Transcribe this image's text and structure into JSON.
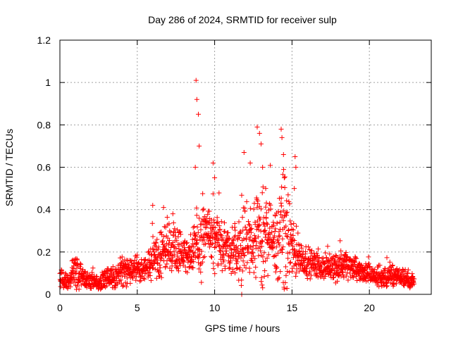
{
  "chart_data": {
    "type": "scatter",
    "title": "Day 286 of 2024, SRMTID for receiver sulp",
    "xlabel": "GPS time / hours",
    "ylabel": "SRMTID / TECUs",
    "xlim": [
      0,
      24
    ],
    "ylim": [
      0,
      1.2
    ],
    "xticks": [
      0,
      5,
      10,
      15,
      20
    ],
    "xtick_labels": [
      "0",
      "5",
      "10",
      "15",
      "20"
    ],
    "yticks": [
      0,
      0.2,
      0.4,
      0.6,
      0.8,
      1,
      1.2
    ],
    "ytick_labels": [
      "0",
      "0.2",
      "0.4",
      "0.6",
      "0.8",
      "1",
      "1.2"
    ],
    "grid": true,
    "marker": "+",
    "color": "#ff0000",
    "envelope": {
      "hours": [
        0,
        0.5,
        1,
        1.5,
        2,
        2.5,
        3,
        3.5,
        4,
        4.5,
        5,
        5.5,
        6,
        6.5,
        7,
        7.5,
        8,
        8.5,
        9,
        9.5,
        10,
        10.5,
        11,
        11.5,
        12,
        12.5,
        13,
        13.5,
        14,
        14.5,
        15,
        15.5,
        16,
        16.5,
        17,
        17.5,
        18,
        18.5,
        19,
        19.5,
        20,
        20.5,
        21,
        21.5,
        22,
        22.5,
        22.9
      ],
      "median": [
        0.07,
        0.06,
        0.11,
        0.07,
        0.06,
        0.05,
        0.08,
        0.08,
        0.1,
        0.11,
        0.12,
        0.13,
        0.15,
        0.18,
        0.25,
        0.22,
        0.2,
        0.18,
        0.22,
        0.32,
        0.22,
        0.24,
        0.22,
        0.2,
        0.24,
        0.27,
        0.28,
        0.26,
        0.24,
        0.3,
        0.22,
        0.18,
        0.15,
        0.14,
        0.13,
        0.13,
        0.13,
        0.14,
        0.12,
        0.11,
        0.09,
        0.08,
        0.08,
        0.09,
        0.08,
        0.07,
        0.06
      ],
      "spread": [
        0.04,
        0.03,
        0.07,
        0.04,
        0.03,
        0.03,
        0.04,
        0.04,
        0.05,
        0.06,
        0.05,
        0.05,
        0.08,
        0.1,
        0.12,
        0.1,
        0.08,
        0.08,
        0.18,
        0.1,
        0.12,
        0.1,
        0.09,
        0.1,
        0.2,
        0.15,
        0.25,
        0.15,
        0.12,
        0.25,
        0.12,
        0.07,
        0.06,
        0.05,
        0.05,
        0.05,
        0.06,
        0.06,
        0.05,
        0.04,
        0.04,
        0.04,
        0.04,
        0.04,
        0.03,
        0.03,
        0.03
      ]
    },
    "spikes": [
      {
        "x": 8.8,
        "y": 1.01
      },
      {
        "x": 8.85,
        "y": 0.92
      },
      {
        "x": 8.95,
        "y": 0.85
      },
      {
        "x": 8.75,
        "y": 0.6
      },
      {
        "x": 9.0,
        "y": 0.7
      },
      {
        "x": 9.9,
        "y": 0.62
      },
      {
        "x": 10.0,
        "y": 0.55
      },
      {
        "x": 11.9,
        "y": 0.67
      },
      {
        "x": 12.3,
        "y": 0.62
      },
      {
        "x": 12.75,
        "y": 0.79
      },
      {
        "x": 12.9,
        "y": 0.76
      },
      {
        "x": 13.0,
        "y": 0.71
      },
      {
        "x": 13.1,
        "y": 0.6
      },
      {
        "x": 13.3,
        "y": 0.5
      },
      {
        "x": 14.3,
        "y": 0.78
      },
      {
        "x": 14.35,
        "y": 0.74
      },
      {
        "x": 14.45,
        "y": 0.66
      },
      {
        "x": 14.5,
        "y": 0.55
      },
      {
        "x": 15.2,
        "y": 0.65
      },
      {
        "x": 15.25,
        "y": 0.6
      },
      {
        "x": 15.15,
        "y": 0.5
      },
      {
        "x": 6.0,
        "y": 0.42
      },
      {
        "x": 6.7,
        "y": 0.41
      },
      {
        "x": 7.3,
        "y": 0.38
      },
      {
        "x": 11.75,
        "y": 0.0
      }
    ]
  }
}
